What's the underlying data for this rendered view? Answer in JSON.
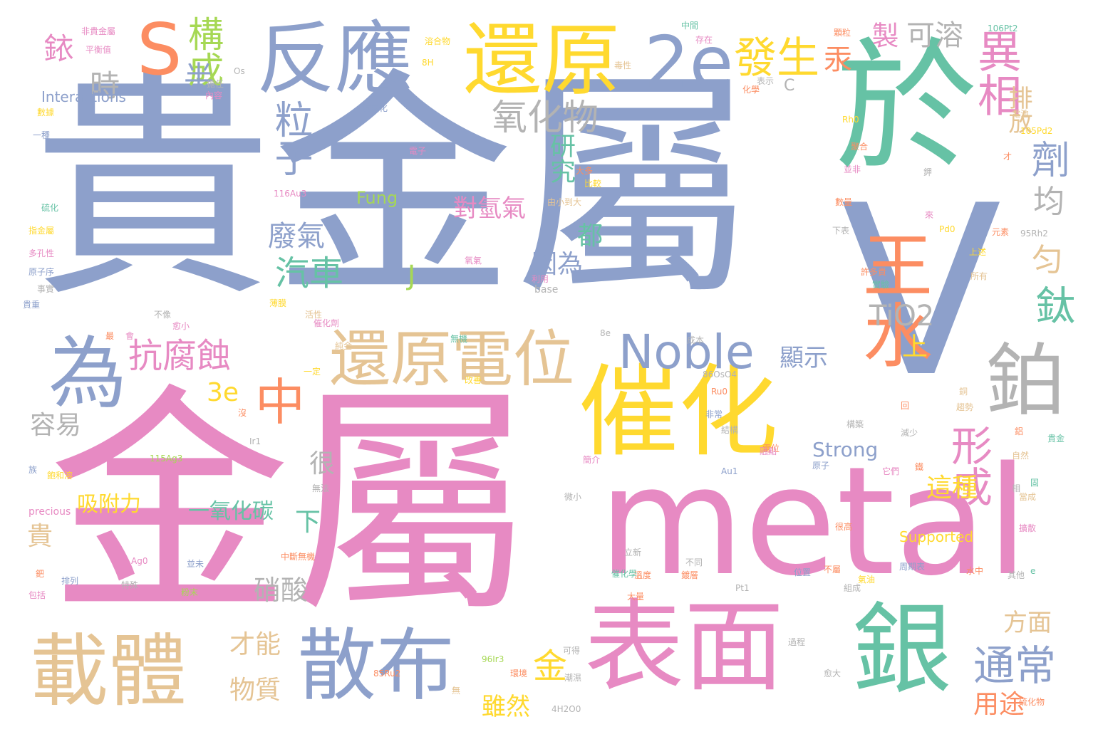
{
  "palette": {
    "blue": "#8da0cb",
    "pink": "#e78ac3",
    "green": "#66c2a5",
    "orange": "#fc8d62",
    "yellow": "#ffd92f",
    "tan": "#e5c494",
    "gray": "#b3b3b3",
    "lime": "#a6d854"
  },
  "words": {
    "w1": "貴金屬",
    "w2": "金屬",
    "w3": "於",
    "w4": "V",
    "w5": "metal",
    "w6": "反應",
    "w7": "S",
    "w8": "還原",
    "w9": "2e",
    "w10": "催化",
    "w11": "表面",
    "w12": "銀",
    "w13": "載體",
    "w14": "散布",
    "w15": "鉑",
    "w16": "為",
    "w17": "中",
    "w18": "還原電位",
    "w19": "Noble",
    "w20": "王水",
    "w21": "異相",
    "w22": "發生",
    "w23": "構成",
    "w24": "粒子",
    "w25": "氧化物",
    "w26": "抗腐蝕",
    "w27": "汽車",
    "w28": "金",
    "w29": "形成",
    "w30": "劑",
    "w31": "鈦",
    "w32": "通常",
    "w33": "TiO2",
    "w34": "研究",
    "w35": "對氫氣",
    "w36": "可溶",
    "w37": "排放",
    "w38": "製",
    "w39": "汞",
    "w40": "銥",
    "w41": "時",
    "w42": "半",
    "w43": "均",
    "w44": "匀",
    "w45": "廢氣",
    "w46": "因為",
    "w47": "J",
    "w48": "3e",
    "w49": "容易",
    "w50": "很",
    "w51": "上",
    "w52": "顯示",
    "w53": "都",
    "w54": "Strong",
    "w55": "這種",
    "w56": "吸附力",
    "w57": "一氧化碳",
    "w58": "下",
    "w59": "貴",
    "w60": "硝酸",
    "w61": "才能",
    "w62": "物質",
    "w63": "雖然",
    "w64": "方面",
    "w65": "用途",
    "w66": "Fung",
    "w67": "Supported",
    "w68": "Interactions",
    "w69": "precious",
    "w70": "C",
    "w71": "base",
    "w72": "Os",
    "w73": "115Ag3",
    "w74": "116Au3",
    "w75": "96Ir3",
    "w76": "85Ru2",
    "w77": "4H2O0",
    "w78": "86OsO4",
    "w79": "106Pt2",
    "w80": "105Pd2",
    "w81": "95Rh2",
    "w82": "Ag0",
    "w83": "Au1",
    "w84": "Ir1",
    "w85": "Pt1",
    "w86": "Pd0",
    "w87": "Ru0",
    "w88": "Rh0",
    "w89": "8H",
    "w90": "8e",
    "w91": "e",
    "w92": "抗氧化",
    "w93": "硫化",
    "w94": "多孔性",
    "w95": "原子序",
    "w96": "事實",
    "w97": "貴重",
    "w98": "指金屬",
    "w99": "一種",
    "w100": "無機",
    "w101": "溶合物",
    "w102": "存在",
    "w103": "中間",
    "w104": "擔任",
    "w105": "內容",
    "w106": "毒性",
    "w107": "表示",
    "w108": "化學",
    "w109": "電位",
    "w110": "元素",
    "w111": "下表",
    "w112": "水中",
    "w113": "氣油",
    "w114": "改善",
    "w115": "許多貴",
    "w116": "上述",
    "w117": "數據",
    "w118": "不同",
    "w119": "立新",
    "w120": "周期表",
    "w121": "催化學",
    "w122": "位置",
    "w123": "不屬",
    "w124": "環境",
    "w125": "可得",
    "w126": "潮濕",
    "w127": "愈大",
    "w128": "硫化物",
    "w129": "氧氣",
    "w130": "大多",
    "w131": "比較",
    "w132": "由小到大",
    "w133": "活性",
    "w134": "微小",
    "w135": "簡介",
    "w136": "非常",
    "w137": "原子",
    "w138": "貴金",
    "w139": "它們",
    "w140": "當成",
    "w141": "固",
    "w142": "相",
    "w143": "擴散",
    "w144": "回",
    "w145": "鋁",
    "w146": "鉀",
    "w147": "才",
    "w148": "來",
    "w149": "會",
    "w150": "最",
    "w151": "族",
    "w152": "沒",
    "w153": "特殊",
    "w154": "粉末",
    "w155": "並未",
    "w156": "排列",
    "w157": "包括",
    "w158": "鈀",
    "w159": "飽和溶",
    "w160": "融點",
    "w161": "趨勢",
    "w162": "銅",
    "w163": "無",
    "w164": "鐵",
    "w165": "中斷無機",
    "w166": "無法",
    "w167": "平衡值",
    "w168": "顆粒",
    "w169": "一定",
    "w170": "構築",
    "w171": "很高",
    "w172": "不像",
    "w173": "愈小",
    "w174": "薄膜",
    "w175": "減少",
    "w176": "聚合",
    "w177": "並非",
    "w178": "數量",
    "w179": "非貴金屬",
    "w180": "純金",
    "w181": "電子",
    "w182": "溫度",
    "w183": "鍍層",
    "w184": "大量",
    "w185": "結構",
    "w186": "利用",
    "w187": "成本",
    "w188": "所有",
    "w189": "自然",
    "w190": "實驗",
    "w191": "電池",
    "w192": "其他",
    "w193": "過程",
    "w194": "組成",
    "w195": "催化劑"
  }
}
